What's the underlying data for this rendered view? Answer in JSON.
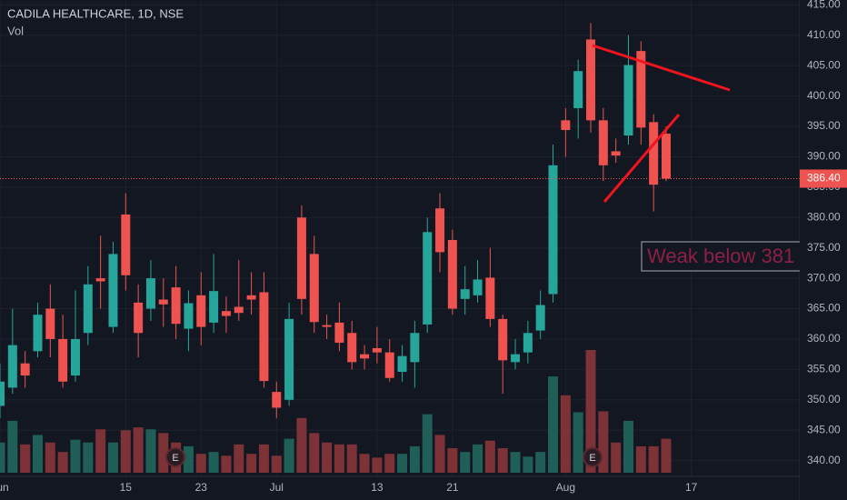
{
  "chart_data": {
    "type": "candlestick",
    "title": "CADILA HEALTHCARE, 1D, NSE",
    "volume_label": "Vol",
    "annotation": "Weak below 381",
    "events": [
      "E",
      "E"
    ],
    "last_price": {
      "value": 386.4,
      "label": "386.40"
    },
    "up_color": "#26a69a",
    "down_color": "#ef5350",
    "up_volume_color": "#1f5f58",
    "down_volume_color": "#7c3236",
    "grid": true,
    "ylim": [
      337.4,
      415.8
    ],
    "yticks": [
      {
        "value": 340,
        "label": "340.00"
      },
      {
        "value": 345,
        "label": "345.00"
      },
      {
        "value": 350,
        "label": "350.00"
      },
      {
        "value": 355,
        "label": "355.00"
      },
      {
        "value": 360,
        "label": "360.00"
      },
      {
        "value": 365,
        "label": "365.00"
      },
      {
        "value": 370,
        "label": "370.00"
      },
      {
        "value": 375,
        "label": "375.00"
      },
      {
        "value": 380,
        "label": "380.00"
      },
      {
        "value": 385,
        "label": "385.00"
      },
      {
        "value": 390,
        "label": "390.00"
      },
      {
        "value": 395,
        "label": "395.00"
      },
      {
        "value": 400,
        "label": "400.00"
      },
      {
        "value": 405,
        "label": "405.00"
      },
      {
        "value": 410,
        "label": "410.00"
      },
      {
        "value": 415,
        "label": "415.00"
      }
    ],
    "categories": [
      "Jun",
      null,
      null,
      null,
      null,
      null,
      null,
      null,
      null,
      null,
      "15",
      null,
      null,
      null,
      null,
      null,
      "23",
      null,
      null,
      null,
      null,
      null,
      "Jul",
      null,
      null,
      null,
      null,
      null,
      null,
      null,
      "13",
      null,
      null,
      null,
      null,
      null,
      "21",
      null,
      null,
      null,
      null,
      null,
      null,
      null,
      null,
      "Aug",
      null,
      null,
      null,
      null,
      null,
      null,
      null,
      null,
      null,
      "17"
    ],
    "open": [
      349,
      352,
      356,
      358,
      365,
      360,
      354,
      361,
      370,
      362,
      380.5,
      366,
      365,
      366.5,
      368.5,
      361.7,
      367.2,
      362.7,
      364.6,
      365.3,
      367.2,
      367.7,
      351.3,
      350,
      380,
      374,
      362.3,
      362.7,
      361,
      357.5,
      358.5,
      357.8,
      354.6,
      356.2,
      362.4,
      381.5,
      376.3,
      366.6,
      367.2,
      370.1,
      363.3,
      356.2,
      357.8,
      361.4,
      367.4,
      396,
      398,
      409.3,
      396,
      390.9,
      393.5,
      407.4,
      395.7,
      393.8,
      null,
      null
    ],
    "high": [
      356,
      365,
      358,
      366,
      369,
      364,
      368,
      372,
      377,
      376,
      384,
      369,
      373,
      370,
      372,
      368,
      371,
      374,
      367,
      373,
      371,
      371,
      353,
      366,
      382,
      377,
      364,
      366,
      363,
      359,
      362,
      360,
      359,
      363,
      380,
      384,
      378,
      372,
      373,
      375,
      364,
      360,
      363,
      368,
      392,
      398,
      406,
      412,
      398,
      393,
      410,
      409,
      397,
      395,
      null,
      null
    ],
    "low": [
      347,
      351,
      352,
      357,
      357,
      352,
      353,
      359,
      365,
      361,
      368,
      357,
      363,
      362,
      360,
      358,
      359,
      361,
      361,
      363,
      364,
      352,
      347,
      349,
      364,
      361,
      360,
      358,
      355,
      355,
      356,
      353,
      353,
      352,
      361,
      371,
      364,
      364,
      366,
      362,
      351,
      355,
      356,
      360,
      366,
      390,
      393,
      394,
      386,
      389,
      392,
      392,
      381,
      386,
      null,
      null
    ],
    "close": [
      353,
      359,
      354,
      364,
      360,
      353,
      360,
      369,
      369.5,
      374,
      370.5,
      361,
      370,
      365.7,
      362.5,
      365.9,
      362,
      367.9,
      363.8,
      364.3,
      366.5,
      353.1,
      348.7,
      363.3,
      366.6,
      362.8,
      362,
      359.4,
      356.2,
      356.8,
      357.8,
      353.6,
      357.2,
      361,
      377.6,
      374.3,
      365,
      368.2,
      369.8,
      363.3,
      356.5,
      357.5,
      361,
      365.6,
      388.6,
      394.4,
      404.1,
      396,
      388.6,
      390.2,
      405.1,
      394.8,
      385.4,
      386.4,
      null,
      null
    ],
    "volume": [
      32,
      55,
      30,
      40,
      32,
      22,
      35,
      32,
      46,
      32,
      45,
      48,
      46,
      42,
      32,
      28,
      20,
      22,
      18,
      30,
      20,
      30,
      18,
      36,
      58,
      42,
      32,
      30,
      30,
      20,
      16,
      20,
      20,
      28,
      62,
      40,
      26,
      22,
      30,
      34,
      26,
      22,
      17,
      22,
      102,
      82,
      64,
      130,
      65,
      32,
      55,
      28,
      28,
      36,
      null,
      null
    ]
  }
}
